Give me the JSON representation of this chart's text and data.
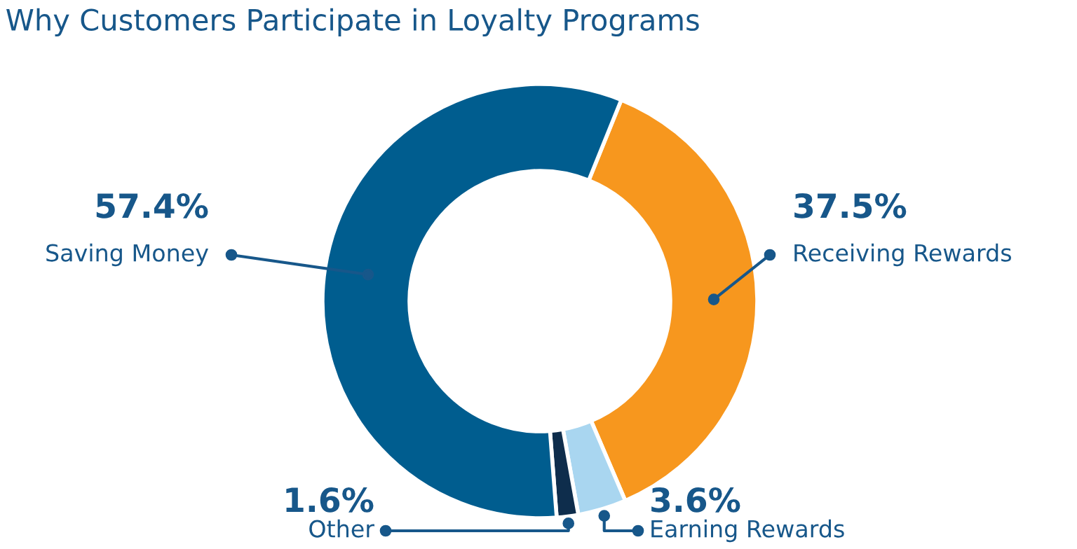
{
  "chart_data": {
    "type": "donut",
    "title": "Why Customers Participate in Loyalty Programs",
    "categories": [
      "Receiving Rewards",
      "Earning Rewards",
      "Other",
      "Saving Money"
    ],
    "values": [
      37.5,
      3.6,
      1.6,
      57.4
    ],
    "value_labels": [
      "37.5%",
      "3.6%",
      "1.6%",
      "57.4%"
    ],
    "colors": [
      "#f7971e",
      "#a9d6f0",
      "#0e2d4c",
      "#005d8f"
    ]
  }
}
